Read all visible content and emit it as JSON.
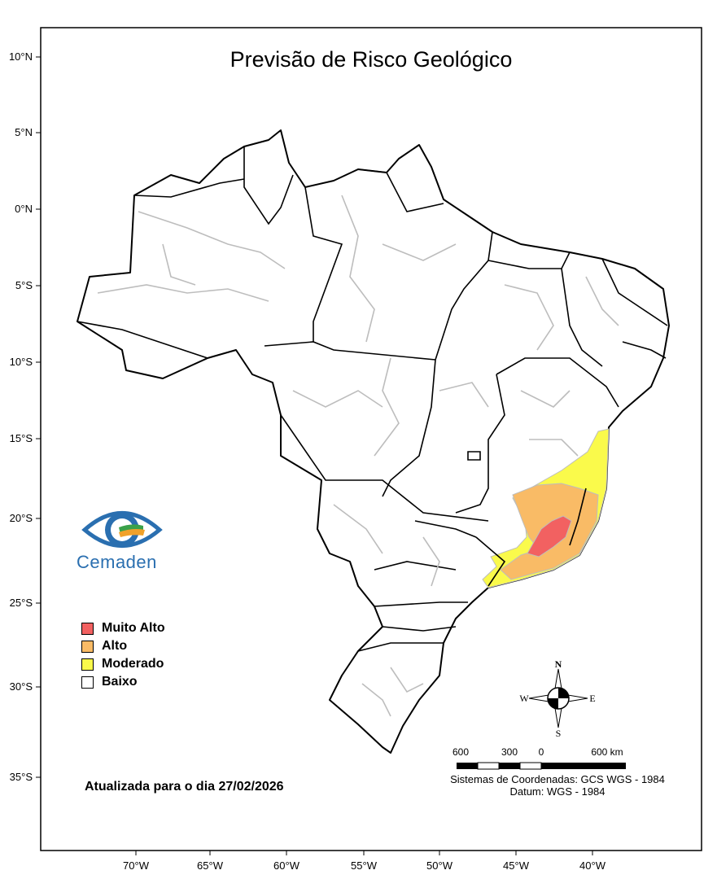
{
  "map": {
    "title": "Previsão de Risco Geológico",
    "updated_text": "Atualizada para o dia 27/02/2026",
    "lat_ticks": [
      "10°N",
      "5°N",
      "0°N",
      "5°S",
      "10°S",
      "15°S",
      "20°S",
      "25°S",
      "30°S",
      "35°S"
    ],
    "lon_ticks": [
      "70°W",
      "65°W",
      "60°W",
      "55°W",
      "50°W",
      "45°W",
      "40°W"
    ]
  },
  "legend": {
    "items": [
      {
        "label": "Muito Alto",
        "color": "#f26161"
      },
      {
        "label": "Alto",
        "color": "#f9bb66"
      },
      {
        "label": "Moderado",
        "color": "#fafa4b"
      },
      {
        "label": "Baixo",
        "color": "#ffffff"
      }
    ]
  },
  "compass": {
    "n": "N",
    "s": "S",
    "e": "E",
    "w": "W"
  },
  "scale_bar": {
    "labels": [
      "600",
      "300",
      "0",
      "600 km"
    ]
  },
  "coordinate_system": {
    "line1": "Sistemas de Coordenadas: GCS WGS - 1984",
    "line2": "Datum: WGS - 1984"
  },
  "logo": {
    "text": "Cemaden"
  },
  "colors": {
    "muito_alto": "#f26161",
    "alto": "#f9bb66",
    "moderado": "#fafa4b",
    "state_border": "#000000",
    "region_border": "#bdbdbd"
  }
}
